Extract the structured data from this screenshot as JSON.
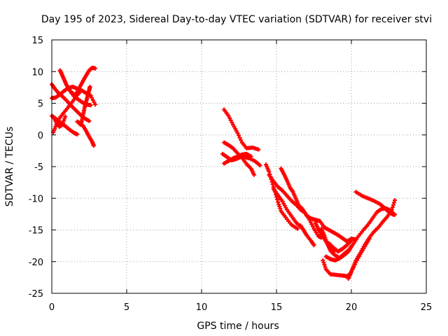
{
  "chart_data": {
    "type": "scatter",
    "title": "Day 195 of 2023, Sidereal Day-to-day VTEC variation (SDTVAR) for receiver stvi",
    "xlabel": "GPS time / hours",
    "ylabel": "SDTVAR / TECUs",
    "xlim": [
      0,
      25
    ],
    "ylim": [
      -25,
      15
    ],
    "x_ticks": [
      "0",
      "5",
      "10",
      "15",
      "20",
      "25"
    ],
    "y_ticks": [
      "15",
      "10",
      "5",
      "0",
      "-5",
      "-10",
      "-15",
      "-20",
      "-25"
    ],
    "grid": true,
    "legend": "none",
    "marker": "plus",
    "color": "#ff0000",
    "series": [
      {
        "points": [
          [
            0.55,
            10.2
          ],
          [
            0.7,
            9.4
          ],
          [
            0.85,
            8.6
          ],
          [
            1.0,
            7.8
          ],
          [
            1.2,
            7.0
          ],
          [
            1.45,
            6.2
          ],
          [
            1.7,
            5.7
          ],
          [
            2.0,
            5.2
          ],
          [
            2.3,
            4.8
          ],
          [
            2.6,
            4.7
          ]
        ]
      },
      {
        "points": [
          [
            0.0,
            8.0
          ],
          [
            0.2,
            7.3
          ],
          [
            0.45,
            6.6
          ],
          [
            0.7,
            6.1
          ],
          [
            1.0,
            5.4
          ],
          [
            1.3,
            4.6
          ],
          [
            1.6,
            3.9
          ],
          [
            1.9,
            3.2
          ],
          [
            2.2,
            2.6
          ],
          [
            2.5,
            2.2
          ]
        ]
      },
      {
        "points": [
          [
            0.0,
            5.8
          ],
          [
            0.25,
            5.9
          ],
          [
            0.5,
            6.3
          ],
          [
            0.8,
            6.9
          ],
          [
            1.1,
            7.4
          ],
          [
            1.4,
            7.6
          ],
          [
            1.7,
            7.3
          ],
          [
            2.0,
            7.0
          ],
          [
            2.3,
            6.6
          ],
          [
            2.6,
            6.2
          ],
          [
            2.9,
            4.8
          ]
        ]
      },
      {
        "points": [
          [
            0.0,
            3.0
          ],
          [
            0.3,
            2.5
          ],
          [
            0.6,
            1.9
          ],
          [
            0.9,
            1.4
          ],
          [
            1.2,
            0.8
          ],
          [
            1.5,
            0.3
          ],
          [
            1.7,
            0.1
          ]
        ]
      },
      {
        "points": [
          [
            0.1,
            0.4
          ],
          [
            0.3,
            1.6
          ],
          [
            0.5,
            2.6
          ],
          [
            0.8,
            3.5
          ],
          [
            1.1,
            4.4
          ],
          [
            1.4,
            5.3
          ],
          [
            1.7,
            6.3
          ],
          [
            1.95,
            7.0
          ]
        ]
      },
      {
        "points": [
          [
            0.1,
            2.9
          ],
          [
            0.3,
            2.0
          ],
          [
            0.5,
            1.3
          ],
          [
            0.7,
            1.6
          ],
          [
            0.9,
            2.9
          ]
        ]
      },
      {
        "points": [
          [
            1.3,
            6.8
          ],
          [
            1.55,
            6.2
          ],
          [
            1.7,
            6.8
          ],
          [
            1.9,
            7.7
          ],
          [
            2.1,
            8.6
          ],
          [
            2.3,
            9.4
          ],
          [
            2.5,
            10.2
          ],
          [
            2.7,
            10.6
          ],
          [
            2.9,
            10.5
          ]
        ]
      },
      {
        "points": [
          [
            1.7,
            2.1
          ],
          [
            1.9,
            1.8
          ],
          [
            2.1,
            1.4
          ],
          [
            2.3,
            0.6
          ],
          [
            2.5,
            -0.3
          ],
          [
            2.7,
            -1.1
          ],
          [
            2.8,
            -1.7
          ]
        ]
      },
      {
        "points": [
          [
            1.9,
            1.6
          ],
          [
            2.0,
            2.2
          ],
          [
            2.1,
            3.3
          ],
          [
            2.2,
            4.4
          ],
          [
            2.3,
            5.3
          ],
          [
            2.4,
            6.2
          ],
          [
            2.5,
            7.1
          ],
          [
            2.55,
            7.6
          ]
        ]
      },
      {
        "points": [
          [
            11.5,
            4.0
          ],
          [
            11.8,
            3.0
          ],
          [
            12.1,
            1.6
          ],
          [
            12.4,
            0.3
          ],
          [
            12.7,
            -1.2
          ],
          [
            13.0,
            -2.1
          ],
          [
            13.4,
            -2.0
          ],
          [
            13.8,
            -2.3
          ]
        ]
      },
      {
        "points": [
          [
            11.5,
            -1.2
          ],
          [
            11.8,
            -1.6
          ],
          [
            12.1,
            -2.1
          ],
          [
            12.4,
            -2.9
          ],
          [
            12.7,
            -3.6
          ],
          [
            13.0,
            -4.6
          ],
          [
            13.3,
            -5.3
          ],
          [
            13.5,
            -6.3
          ]
        ]
      },
      {
        "points": [
          [
            11.4,
            -3.0
          ],
          [
            11.7,
            -3.5
          ],
          [
            12.0,
            -4.0
          ],
          [
            12.3,
            -3.8
          ],
          [
            12.6,
            -3.5
          ],
          [
            12.9,
            -3.5
          ],
          [
            13.2,
            -3.7
          ],
          [
            13.6,
            -4.2
          ],
          [
            13.9,
            -4.8
          ]
        ]
      },
      {
        "points": [
          [
            11.5,
            -4.5
          ],
          [
            11.8,
            -4.1
          ],
          [
            12.1,
            -3.7
          ],
          [
            12.4,
            -3.4
          ],
          [
            12.7,
            -3.1
          ],
          [
            13.0,
            -3.0
          ],
          [
            13.3,
            -3.4
          ]
        ]
      },
      {
        "points": [
          [
            14.3,
            -4.7
          ],
          [
            14.5,
            -5.8
          ],
          [
            14.7,
            -7.4
          ],
          [
            14.9,
            -9.0
          ],
          [
            15.1,
            -10.6
          ],
          [
            15.3,
            -12.0
          ],
          [
            15.6,
            -13.0
          ],
          [
            16.0,
            -14.2
          ],
          [
            16.4,
            -14.8
          ]
        ]
      },
      {
        "points": [
          [
            14.8,
            -8.5
          ],
          [
            15.1,
            -9.5
          ],
          [
            15.4,
            -10.5
          ],
          [
            15.7,
            -11.8
          ],
          [
            16.0,
            -12.8
          ],
          [
            16.3,
            -13.8
          ],
          [
            16.6,
            -14.5
          ]
        ]
      },
      {
        "points": [
          [
            14.5,
            -6.3
          ],
          [
            14.8,
            -7.3
          ],
          [
            15.1,
            -8.2
          ],
          [
            15.4,
            -8.8
          ],
          [
            15.7,
            -9.6
          ],
          [
            16.0,
            -10.4
          ],
          [
            16.3,
            -11.0
          ],
          [
            16.6,
            -11.8
          ],
          [
            16.9,
            -12.3
          ],
          [
            17.2,
            -13.4
          ],
          [
            17.5,
            -14.8
          ],
          [
            17.8,
            -16.0
          ],
          [
            18.0,
            -16.2
          ]
        ]
      },
      {
        "points": [
          [
            15.3,
            -5.3
          ],
          [
            15.5,
            -6.2
          ],
          [
            15.7,
            -7.2
          ],
          [
            15.9,
            -8.3
          ],
          [
            16.1,
            -9.0
          ],
          [
            16.3,
            -10.1
          ],
          [
            16.5,
            -11.2
          ],
          [
            16.7,
            -11.6
          ],
          [
            16.9,
            -12.3
          ]
        ]
      },
      {
        "points": [
          [
            16.6,
            -14.3
          ],
          [
            16.8,
            -15.0
          ],
          [
            17.0,
            -15.8
          ],
          [
            17.3,
            -16.7
          ],
          [
            17.5,
            -17.4
          ]
        ]
      },
      {
        "points": [
          [
            17.0,
            -12.7
          ],
          [
            17.3,
            -13.2
          ],
          [
            17.6,
            -13.4
          ],
          [
            17.9,
            -13.6
          ],
          [
            18.2,
            -14.6
          ],
          [
            18.5,
            -15.0
          ],
          [
            18.8,
            -15.4
          ],
          [
            19.1,
            -15.8
          ],
          [
            19.4,
            -16.3
          ],
          [
            19.7,
            -16.8
          ],
          [
            20.0,
            -16.4
          ],
          [
            20.3,
            -16.5
          ]
        ]
      },
      {
        "points": [
          [
            18.0,
            -14.8
          ],
          [
            18.2,
            -15.9
          ],
          [
            18.4,
            -17.2
          ],
          [
            18.6,
            -18.3
          ],
          [
            18.9,
            -19.0
          ],
          [
            19.2,
            -19.4
          ],
          [
            19.5,
            -18.8
          ],
          [
            19.8,
            -18.2
          ],
          [
            20.1,
            -17.3
          ],
          [
            20.4,
            -16.2
          ],
          [
            20.8,
            -15.0
          ],
          [
            21.1,
            -14.2
          ],
          [
            21.4,
            -13.2
          ],
          [
            21.7,
            -12.2
          ],
          [
            22.0,
            -11.7
          ],
          [
            22.3,
            -11.6
          ],
          [
            22.6,
            -11.9
          ],
          [
            22.9,
            -12.6
          ]
        ]
      },
      {
        "points": [
          [
            17.6,
            -13.9
          ],
          [
            17.8,
            -14.9
          ],
          [
            18.0,
            -15.6
          ],
          [
            18.2,
            -16.4
          ],
          [
            18.4,
            -17.2
          ],
          [
            18.6,
            -18.0
          ],
          [
            18.8,
            -18.5
          ]
        ]
      },
      {
        "points": [
          [
            18.3,
            -19.2
          ],
          [
            18.6,
            -19.6
          ],
          [
            18.9,
            -19.8
          ],
          [
            19.2,
            -19.5
          ],
          [
            19.5,
            -19.0
          ],
          [
            19.8,
            -18.4
          ],
          [
            20.0,
            -17.6
          ]
        ]
      },
      {
        "points": [
          [
            18.1,
            -19.8
          ],
          [
            18.3,
            -21.2
          ],
          [
            18.6,
            -22.0
          ],
          [
            19.0,
            -22.1
          ],
          [
            19.4,
            -22.2
          ],
          [
            19.7,
            -22.3
          ],
          [
            19.9,
            -22.0
          ],
          [
            20.1,
            -21.0
          ],
          [
            20.3,
            -19.8
          ],
          [
            20.6,
            -18.6
          ],
          [
            20.9,
            -17.3
          ],
          [
            21.2,
            -16.2
          ],
          [
            21.5,
            -15.3
          ],
          [
            21.8,
            -14.6
          ],
          [
            22.1,
            -13.7
          ],
          [
            22.4,
            -12.9
          ],
          [
            22.7,
            -11.8
          ],
          [
            22.9,
            -10.3
          ]
        ]
      },
      {
        "points": [
          [
            19.8,
            -22.7
          ],
          [
            20.0,
            -21.6
          ],
          [
            20.3,
            -20.1
          ],
          [
            20.6,
            -18.8
          ],
          [
            20.9,
            -17.6
          ],
          [
            21.2,
            -16.4
          ]
        ]
      },
      {
        "points": [
          [
            20.3,
            -9.0
          ],
          [
            20.7,
            -9.6
          ],
          [
            21.1,
            -10.0
          ],
          [
            21.5,
            -10.4
          ],
          [
            21.9,
            -10.9
          ],
          [
            22.2,
            -11.5
          ],
          [
            22.5,
            -12.2
          ],
          [
            22.8,
            -12.6
          ]
        ]
      },
      {
        "points": [
          [
            18.5,
            -17.1
          ],
          [
            18.8,
            -17.8
          ],
          [
            19.1,
            -18.4
          ],
          [
            19.4,
            -18.0
          ],
          [
            19.7,
            -17.4
          ],
          [
            20.0,
            -16.7
          ]
        ]
      }
    ]
  }
}
